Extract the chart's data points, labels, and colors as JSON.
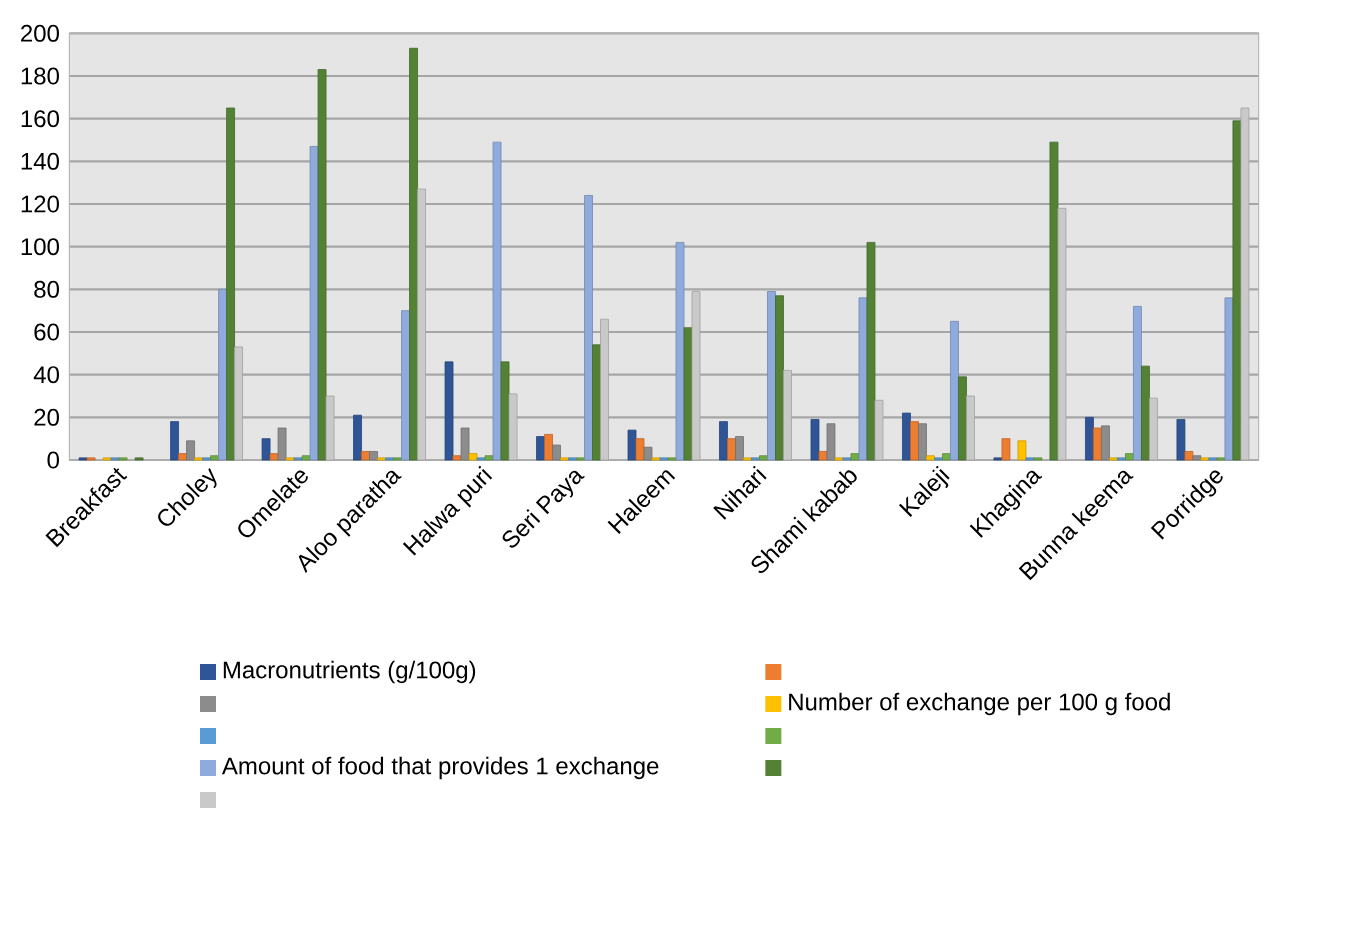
{
  "chart_data": {
    "type": "bar",
    "categories": [
      "Breakfast",
      "Choley",
      "Omelate",
      "Aloo paratha",
      "Halwa puri",
      "Seri Paya",
      "Haleem",
      "Nihari",
      "Shami kabab",
      "Kaleji",
      "Khagina",
      "Bunna keema",
      "Porridge"
    ],
    "series": [
      {
        "name": "Macronutrients (g/100g)",
        "color": "#2f5597",
        "values": [
          1,
          18,
          10,
          21,
          46,
          11,
          14,
          18,
          19,
          22,
          1,
          20,
          19
        ]
      },
      {
        "color": "#ed7d31",
        "values": [
          1,
          3,
          3,
          4,
          2,
          12,
          10,
          10,
          4,
          18,
          10,
          15,
          4
        ]
      },
      {
        "color": "#8c8c8c",
        "values": [
          null,
          9,
          15,
          4,
          15,
          7,
          6,
          11,
          17,
          17,
          null,
          16,
          2
        ]
      },
      {
        "name": "Number of exchange per 100 g food",
        "color": "#ffc000",
        "values": [
          1,
          1,
          1,
          1,
          3,
          1,
          1,
          1,
          1,
          2,
          9,
          1,
          1
        ]
      },
      {
        "color": "#5b9bd5",
        "values": [
          1,
          1,
          1,
          1,
          1,
          1,
          1,
          1,
          1,
          1,
          1,
          1,
          1
        ]
      },
      {
        "color": "#70ad47",
        "values": [
          1,
          2,
          2,
          1,
          2,
          1,
          1,
          2,
          3,
          3,
          1,
          3,
          1
        ]
      },
      {
        "name": "Amount of food that provides 1 exchange",
        "color": "#8faadc",
        "values": [
          null,
          80,
          147,
          70,
          149,
          124,
          102,
          79,
          76,
          65,
          null,
          72,
          76
        ]
      },
      {
        "color": "#548235",
        "values": [
          1,
          165,
          183,
          193,
          46,
          54,
          62,
          77,
          102,
          39,
          149,
          44,
          159
        ]
      },
      {
        "color": "#c9c9c9",
        "values": [
          null,
          53,
          30,
          127,
          31,
          66,
          79,
          42,
          28,
          30,
          118,
          29,
          165
        ]
      }
    ],
    "ylim": [
      0,
      200
    ],
    "yticks": [
      0,
      20,
      40,
      60,
      80,
      100,
      120,
      140,
      160,
      180,
      200
    ],
    "grid": "y",
    "legend": "bottom"
  }
}
